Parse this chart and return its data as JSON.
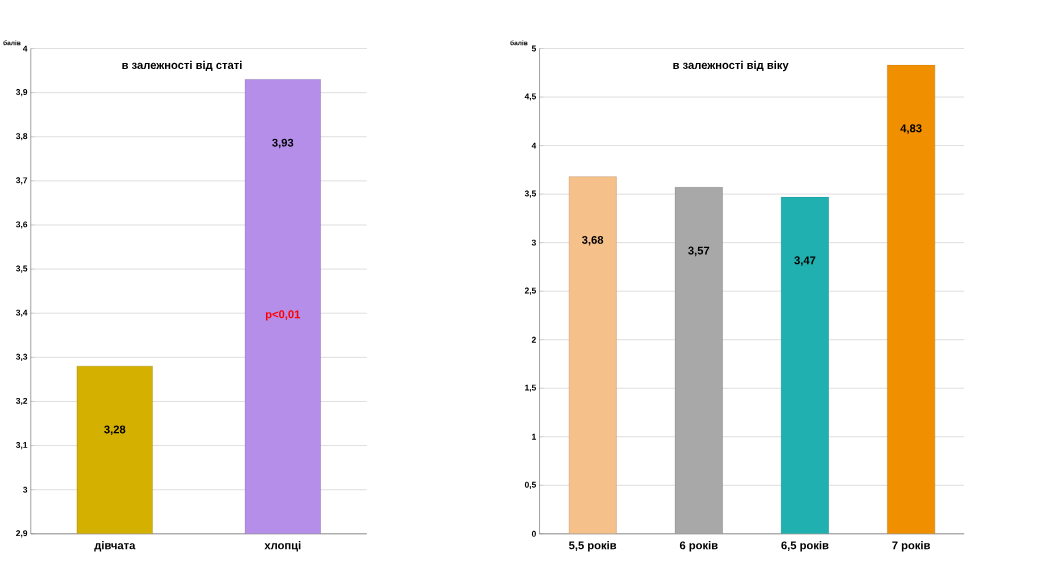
{
  "chart_data": [
    {
      "type": "bar",
      "title": "в залежності від статі",
      "ylabel": "балів",
      "categories": [
        "дівчата",
        "хлопці"
      ],
      "values": [
        3.28,
        3.93
      ],
      "value_labels": [
        "3,28",
        "3,93"
      ],
      "colors": [
        "#d4b000",
        "#b48ee8"
      ],
      "ylim": [
        2.9,
        4
      ],
      "yticks": [
        {
          "value": 2.9,
          "label": "2,9"
        },
        {
          "value": 3,
          "label": "3"
        },
        {
          "value": 3.1,
          "label": "3,1"
        },
        {
          "value": 3.2,
          "label": "3,2"
        },
        {
          "value": 3.3,
          "label": "3,3"
        },
        {
          "value": 3.4,
          "label": "3,4"
        },
        {
          "value": 3.5,
          "label": "3,5"
        },
        {
          "value": 3.6,
          "label": "3,6"
        },
        {
          "value": 3.7,
          "label": "3,7"
        },
        {
          "value": 3.8,
          "label": "3,8"
        },
        {
          "value": 3.9,
          "label": "3,9"
        },
        {
          "value": 4,
          "label": "4"
        }
      ],
      "grid": "y",
      "annotations": [
        "p<0,01"
      ]
    },
    {
      "type": "bar",
      "title": "в залежності від віку",
      "ylabel": "балів",
      "categories": [
        "5,5 років",
        "6 років",
        "6,5 років",
        "7 років"
      ],
      "values": [
        3.68,
        3.57,
        3.47,
        4.83
      ],
      "value_labels": [
        "3,68",
        "3,57",
        "3,47",
        "4,83"
      ],
      "colors": [
        "#f5c08a",
        "#a8a8a8",
        "#20b0b0",
        "#f09000"
      ],
      "ylim": [
        0,
        5
      ],
      "yticks": [
        0,
        {
          "value": 0.5,
          "label": "0,5"
        },
        1,
        {
          "value": 1.5,
          "label": "1,5"
        },
        2,
        {
          "value": 2.5,
          "label": "2,5"
        },
        3,
        {
          "value": 3.5,
          "label": "3,5"
        },
        4,
        {
          "value": 4.5,
          "label": "4,5"
        },
        5
      ],
      "grid": "y"
    }
  ]
}
